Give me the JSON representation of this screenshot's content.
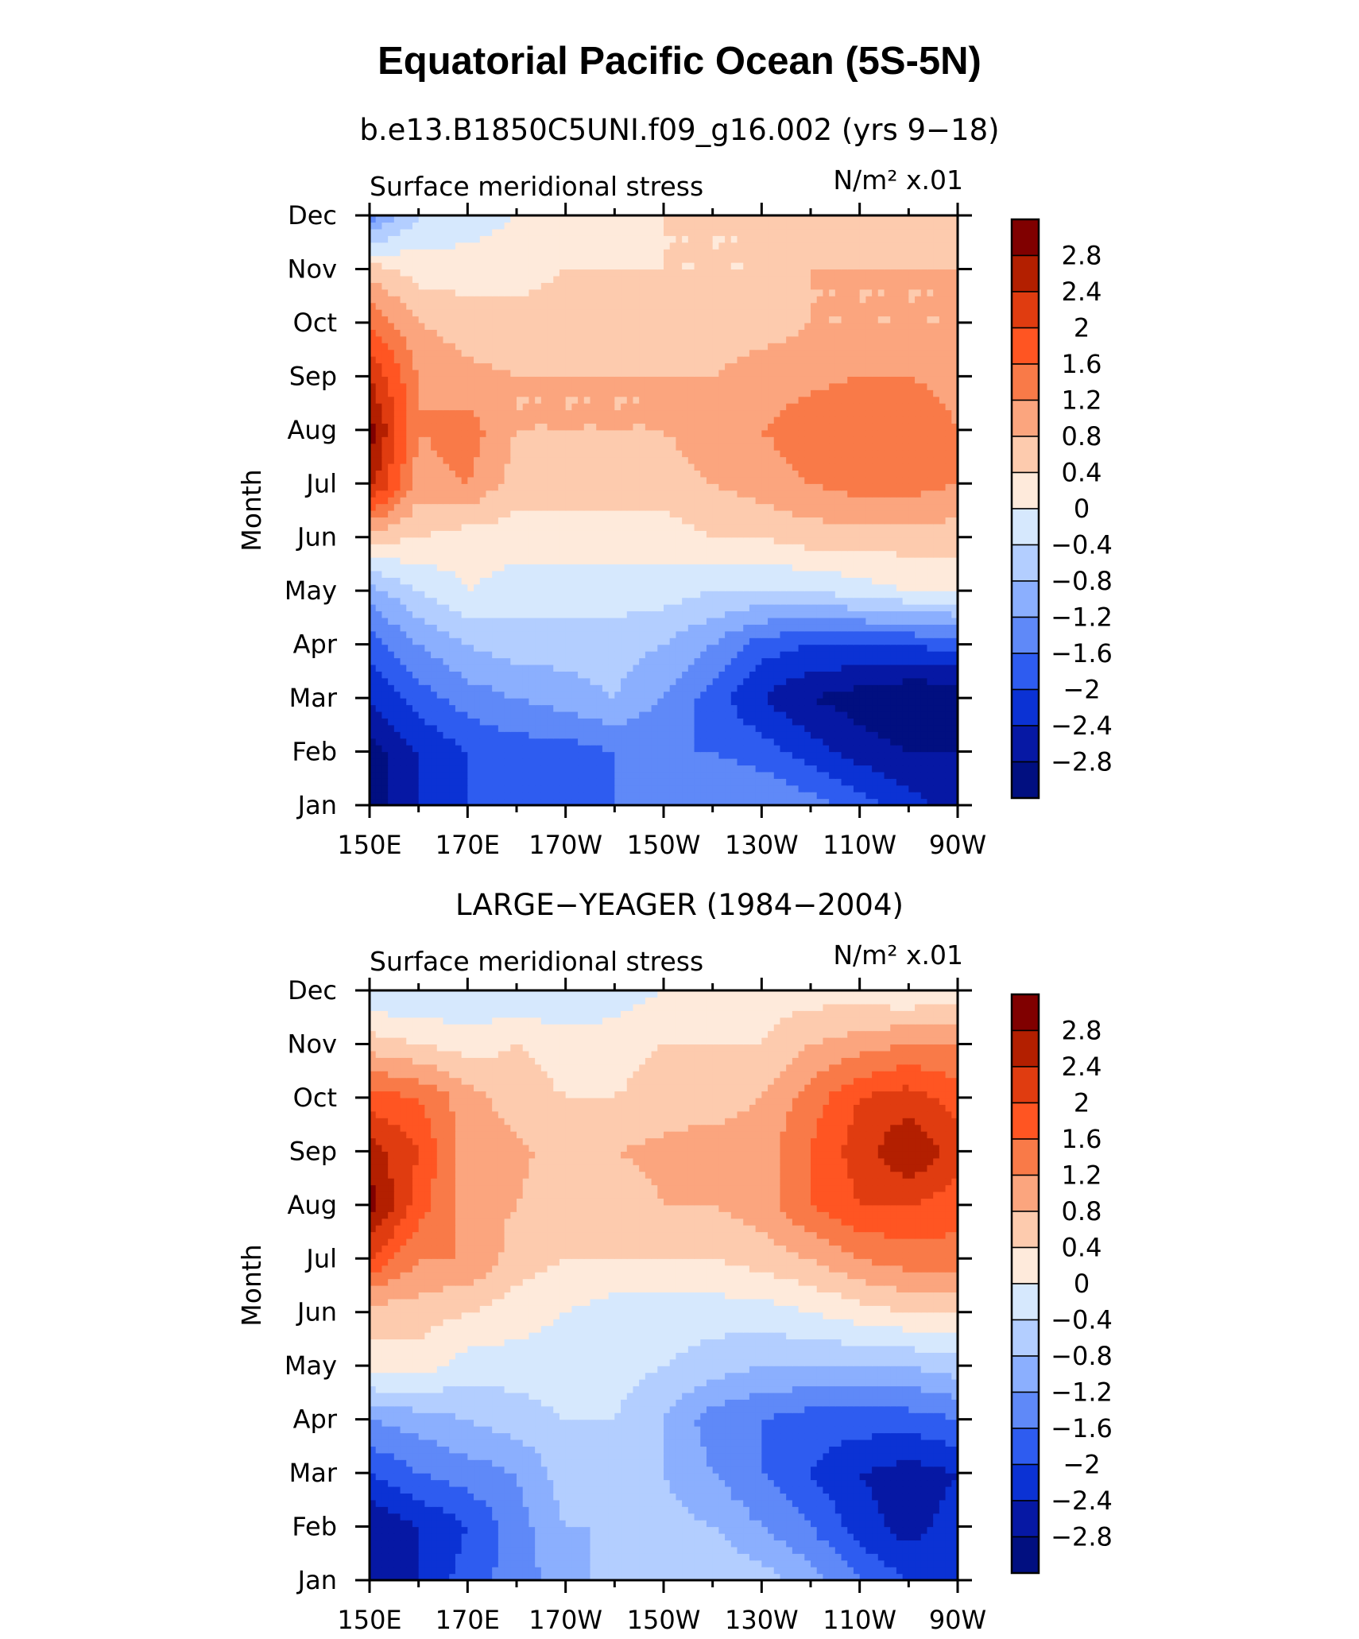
{
  "title": "Equatorial Pacific Ocean (5S-5N)",
  "chart_data": [
    {
      "type": "heatmap",
      "title": "b.e13.B1850C5UNI.f09_g16.002 (yrs 9−18)",
      "left_label": "Surface meridional stress",
      "units_label": "N/m² x.01",
      "ylabel": "Month",
      "xlabel": "",
      "x_ticks": [
        "150E",
        "170E",
        "170W",
        "150W",
        "130W",
        "110W",
        "90W"
      ],
      "y_ticks": [
        "Jan",
        "Feb",
        "Mar",
        "Apr",
        "May",
        "Jun",
        "Jul",
        "Aug",
        "Sep",
        "Oct",
        "Nov",
        "Dec"
      ],
      "x": [
        150,
        160,
        170,
        180,
        190,
        200,
        210,
        220,
        230,
        240,
        250,
        260,
        270
      ],
      "y": [
        "Jan",
        "Feb",
        "Mar",
        "Apr",
        "May",
        "Jun",
        "Jul",
        "Aug",
        "Sep",
        "Oct",
        "Nov",
        "Dec"
      ],
      "z": [
        [
          -3.0,
          -2.4,
          -2.0,
          -1.8,
          -1.6,
          -1.6,
          -1.4,
          -1.2,
          -1.2,
          -1.4,
          -1.8,
          -2.2,
          -2.6
        ],
        [
          -3.0,
          -2.4,
          -2.0,
          -1.8,
          -1.8,
          -1.6,
          -1.6,
          -1.6,
          -1.8,
          -2.2,
          -2.6,
          -2.8,
          -2.8
        ],
        [
          -2.4,
          -1.8,
          -1.4,
          -1.2,
          -1.0,
          -0.8,
          -1.2,
          -1.8,
          -2.4,
          -2.8,
          -3.0,
          -3.2,
          -3.2
        ],
        [
          -1.8,
          -1.2,
          -0.8,
          -0.6,
          -0.6,
          -0.6,
          -0.8,
          -1.2,
          -1.8,
          -2.0,
          -2.0,
          -2.0,
          -1.8
        ],
        [
          -1.0,
          -0.4,
          0.0,
          -0.2,
          -0.2,
          -0.2,
          -0.2,
          -0.4,
          -0.4,
          -0.4,
          -0.2,
          0.0,
          0.0
        ],
        [
          0.6,
          0.4,
          0.2,
          0.2,
          0.2,
          0.2,
          0.2,
          0.4,
          0.4,
          0.6,
          0.6,
          0.6,
          0.6
        ],
        [
          2.6,
          1.0,
          1.2,
          0.6,
          0.6,
          0.6,
          0.6,
          0.8,
          1.0,
          1.2,
          1.4,
          1.4,
          1.2
        ],
        [
          3.0,
          1.2,
          1.4,
          0.8,
          0.8,
          0.8,
          0.8,
          1.0,
          1.2,
          1.4,
          1.6,
          1.6,
          1.2
        ],
        [
          2.4,
          1.2,
          0.9,
          0.8,
          0.8,
          0.8,
          0.8,
          0.8,
          1.0,
          1.1,
          1.2,
          1.2,
          1.0
        ],
        [
          1.6,
          0.8,
          0.6,
          0.6,
          0.6,
          0.6,
          0.6,
          0.6,
          0.6,
          0.8,
          0.8,
          0.8,
          0.8
        ],
        [
          0.6,
          0.2,
          0.2,
          0.2,
          0.4,
          0.4,
          0.4,
          0.4,
          0.4,
          0.8,
          0.8,
          0.8,
          0.8
        ],
        [
          -1.4,
          -0.4,
          -0.2,
          0.0,
          0.2,
          0.2,
          0.4,
          0.4,
          0.4,
          0.6,
          0.6,
          0.6,
          0.4
        ]
      ]
    },
    {
      "type": "heatmap",
      "title": "LARGE−YEAGER (1984−2004)",
      "left_label": "Surface meridional stress",
      "units_label": "N/m² x.01",
      "ylabel": "Month",
      "xlabel": "",
      "x_ticks": [
        "150E",
        "170E",
        "170W",
        "150W",
        "130W",
        "110W",
        "90W"
      ],
      "y_ticks": [
        "Jan",
        "Feb",
        "Mar",
        "Apr",
        "May",
        "Jun",
        "Jul",
        "Aug",
        "Sep",
        "Oct",
        "Nov",
        "Dec"
      ],
      "x": [
        150,
        160,
        170,
        180,
        190,
        200,
        210,
        220,
        230,
        240,
        250,
        260,
        270
      ],
      "y": [
        "Jan",
        "Feb",
        "Mar",
        "Apr",
        "May",
        "Jun",
        "Jul",
        "Aug",
        "Sep",
        "Oct",
        "Nov",
        "Dec"
      ],
      "z": [
        [
          -2.8,
          -2.4,
          -1.8,
          -1.4,
          -1.0,
          -0.6,
          -0.4,
          -0.4,
          -0.6,
          -1.0,
          -1.6,
          -2.0,
          -2.0
        ],
        [
          -2.8,
          -2.4,
          -2.0,
          -1.4,
          -0.8,
          -0.8,
          -0.6,
          -0.8,
          -1.2,
          -1.6,
          -2.2,
          -2.6,
          -2.2
        ],
        [
          -2.0,
          -1.6,
          -1.4,
          -1.2,
          -0.6,
          -0.6,
          -0.8,
          -1.2,
          -1.6,
          -2.0,
          -2.4,
          -2.6,
          -2.4
        ],
        [
          -1.2,
          -1.0,
          -0.8,
          -0.6,
          -0.4,
          -0.4,
          -0.8,
          -1.4,
          -1.6,
          -1.8,
          -1.8,
          -1.8,
          -1.6
        ],
        [
          0.2,
          0.2,
          -0.2,
          -0.2,
          -0.2,
          -0.2,
          -0.4,
          -0.6,
          -0.8,
          -0.8,
          -0.8,
          -0.8,
          -0.6
        ],
        [
          0.6,
          0.6,
          0.4,
          0.2,
          0.0,
          -0.2,
          -0.2,
          -0.2,
          -0.2,
          0.0,
          0.2,
          0.4,
          0.4
        ],
        [
          2.0,
          1.2,
          1.2,
          0.6,
          0.4,
          0.4,
          0.4,
          0.4,
          0.6,
          0.8,
          1.2,
          1.4,
          1.4
        ],
        [
          3.0,
          1.8,
          1.0,
          0.8,
          0.6,
          0.6,
          0.8,
          0.8,
          1.0,
          1.6,
          2.0,
          2.0,
          1.8
        ],
        [
          2.6,
          2.0,
          0.9,
          0.9,
          0.6,
          0.8,
          0.9,
          1.0,
          1.0,
          1.6,
          2.2,
          2.8,
          2.2
        ],
        [
          1.8,
          1.6,
          1.0,
          0.6,
          0.4,
          0.4,
          0.6,
          0.6,
          0.8,
          1.4,
          2.0,
          2.2,
          1.8
        ],
        [
          0.6,
          0.4,
          0.2,
          0.4,
          0.2,
          0.2,
          0.4,
          0.4,
          0.4,
          0.8,
          1.0,
          1.2,
          1.2
        ],
        [
          -0.4,
          -0.4,
          -0.4,
          -0.4,
          -0.4,
          -0.2,
          0.0,
          0.2,
          0.2,
          0.2,
          0.2,
          0.0,
          0.2
        ]
      ]
    }
  ],
  "colorbar": {
    "labels": [
      "2.8",
      "2.4",
      "2",
      "1.6",
      "1.2",
      "0.8",
      "0.4",
      "0",
      "−0.4",
      "−0.8",
      "−1.2",
      "−1.6",
      "−2",
      "−2.4",
      "−2.8"
    ],
    "levels": [
      -2.8,
      -2.4,
      -2.0,
      -1.6,
      -1.2,
      -0.8,
      -0.4,
      0,
      0.4,
      0.8,
      1.2,
      1.6,
      2.0,
      2.4,
      2.8
    ],
    "colors_high_to_low": [
      "#800000",
      "#b31f00",
      "#e03c10",
      "#ff5522",
      "#f97a48",
      "#fba57e",
      "#fdcbae",
      "#feeadb",
      "#d6e8fd",
      "#b3ceff",
      "#8baffe",
      "#5f89f8",
      "#2e5cf0",
      "#0b32d4",
      "#0618a4",
      "#010f80"
    ]
  }
}
